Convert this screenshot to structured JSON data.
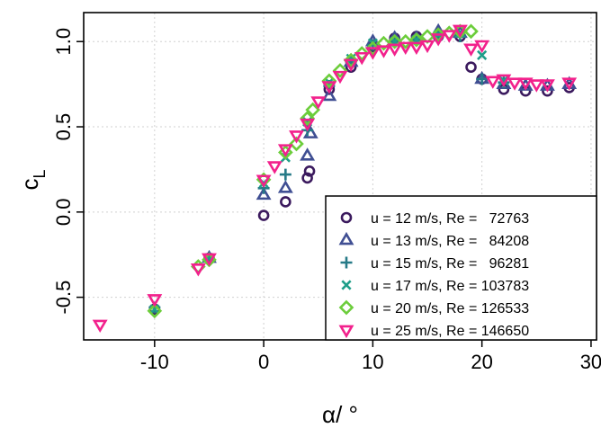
{
  "chart_data": {
    "type": "scatter",
    "xlabel": "α/ °",
    "ylabel": "c",
    "ylabel_subscript": "L",
    "xlim": [
      -16.5,
      30.5
    ],
    "ylim": [
      -0.75,
      1.17
    ],
    "x_ticks": [
      -10,
      0,
      10,
      20,
      30
    ],
    "x_tick_labels": [
      "-10",
      "0",
      "10",
      "20",
      "30"
    ],
    "y_ticks": [
      -0.5,
      0.0,
      0.5,
      1.0
    ],
    "y_tick_labels": [
      "-0.5",
      "0.0",
      "0.5",
      "1.0"
    ],
    "grid": true,
    "legend_placement": "bottom-right",
    "series": [
      {
        "name": "u = 12 m/s, Re =   72763",
        "marker": "circle",
        "color": "#3b1a5e",
        "x": [
          -10,
          -5,
          0,
          2,
          4,
          4.2,
          6,
          8,
          10,
          12,
          14,
          16,
          18,
          19,
          20,
          22,
          24,
          26,
          28
        ],
        "y": [
          -0.57,
          -0.27,
          -0.02,
          0.06,
          0.2,
          0.24,
          0.72,
          0.85,
          0.97,
          1.02,
          1.03,
          1.03,
          1.03,
          0.85,
          0.78,
          0.72,
          0.71,
          0.71,
          0.73
        ]
      },
      {
        "name": "u = 13 m/s, Re =   84208",
        "marker": "triangle-up",
        "color": "#404f93",
        "x": [
          -5,
          0,
          2,
          4,
          4.3,
          6,
          8,
          10,
          12,
          14,
          16,
          18,
          20,
          22,
          24,
          26,
          28
        ],
        "y": [
          -0.27,
          0.1,
          0.14,
          0.33,
          0.46,
          0.68,
          0.88,
          1.0,
          1.02,
          1.02,
          1.06,
          1.05,
          0.78,
          0.75,
          0.74,
          0.74,
          0.75
        ]
      },
      {
        "name": "u = 15 m/s, Re =   96281",
        "marker": "plus",
        "color": "#267a87",
        "x": [
          -10,
          -5,
          0,
          2,
          4,
          6,
          8,
          10,
          12,
          14,
          16,
          18,
          20,
          22
        ],
        "y": [
          -0.56,
          -0.28,
          0.14,
          0.22,
          0.48,
          0.74,
          0.88,
          0.98,
          1.0,
          1.01,
          1.03,
          1.03,
          0.78,
          0.76
        ]
      },
      {
        "name": "u = 17 m/s, Re = 103783",
        "marker": "x",
        "color": "#1f9e89",
        "x": [
          -10,
          -5,
          0,
          2,
          4,
          6,
          8,
          10,
          12,
          14,
          16,
          18,
          20,
          22
        ],
        "y": [
          -0.57,
          -0.27,
          0.17,
          0.32,
          0.53,
          0.76,
          0.9,
          0.99,
          1.0,
          1.01,
          1.04,
          1.05,
          0.92,
          0.77
        ]
      },
      {
        "name": "u = 20 m/s, Re = 126533",
        "marker": "diamond",
        "color": "#6ccd3b",
        "x": [
          -10,
          -6,
          -5,
          0,
          2,
          3,
          4,
          4.5,
          6,
          7,
          8,
          9,
          10,
          11,
          12,
          13,
          14,
          15,
          16,
          17,
          18,
          19
        ],
        "y": [
          -0.58,
          -0.32,
          -0.28,
          0.19,
          0.35,
          0.4,
          0.55,
          0.6,
          0.77,
          0.83,
          0.89,
          0.93,
          0.96,
          0.99,
          1.0,
          1.0,
          1.01,
          1.03,
          1.04,
          1.05,
          1.06,
          1.06
        ]
      },
      {
        "name": "u = 25 m/s, Re = 146650",
        "marker": "triangle-down",
        "color": "#f2218c",
        "x": [
          -15,
          -10,
          -6,
          -5,
          0,
          1,
          2,
          3,
          4,
          5,
          6,
          7,
          8,
          9,
          10,
          11,
          12,
          13,
          14,
          15,
          16,
          17,
          18,
          19,
          20,
          21,
          22,
          23,
          24,
          25,
          26,
          28
        ],
        "y": [
          -0.66,
          -0.51,
          -0.33,
          -0.27,
          0.19,
          0.27,
          0.37,
          0.45,
          0.52,
          0.65,
          0.74,
          0.8,
          0.87,
          0.91,
          0.94,
          0.95,
          0.96,
          0.97,
          0.97,
          0.98,
          1.02,
          1.04,
          1.07,
          0.96,
          0.98,
          0.77,
          0.78,
          0.76,
          0.76,
          0.75,
          0.75,
          0.76
        ]
      }
    ]
  }
}
